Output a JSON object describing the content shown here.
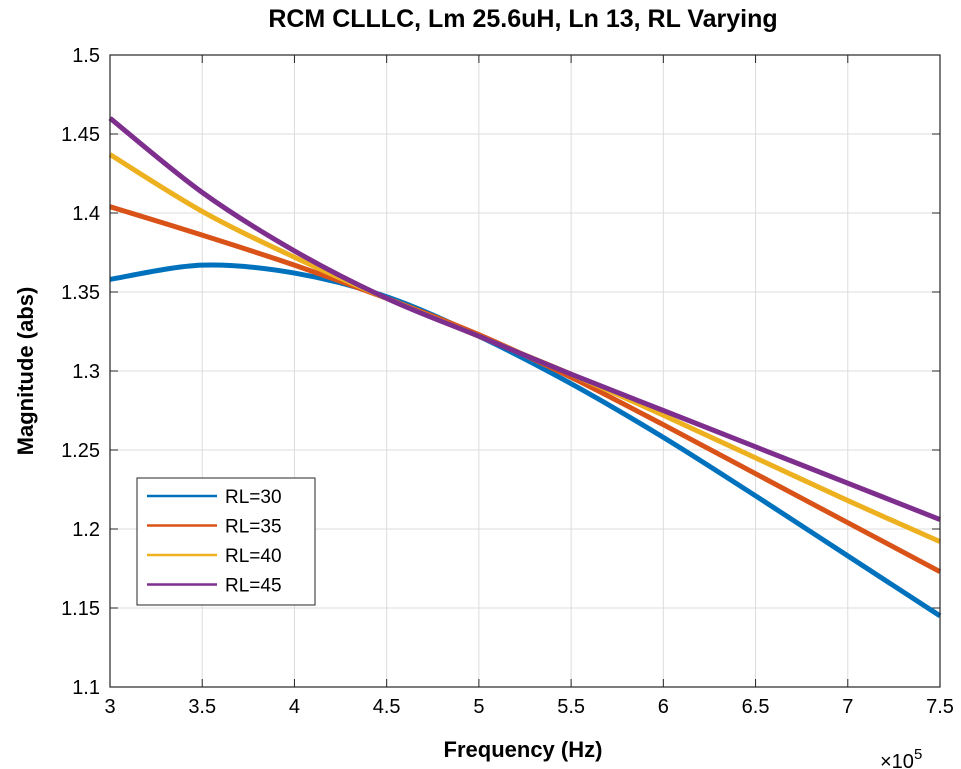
{
  "chart_data": {
    "type": "line",
    "title": "RCM CLLLC, Lm 25.6uH, Ln 13, RL Varying",
    "xlabel": "Frequency  (Hz)",
    "ylabel": "Magnitude (abs)",
    "x_exponent_label": "×10",
    "x_exponent_power": "5",
    "xlim": [
      300000,
      750000
    ],
    "ylim": [
      1.1,
      1.5
    ],
    "xticks": [
      300000,
      350000,
      400000,
      450000,
      500000,
      550000,
      600000,
      650000,
      700000,
      750000
    ],
    "xtick_labels": [
      "3",
      "3.5",
      "4",
      "4.5",
      "5",
      "5.5",
      "6",
      "6.5",
      "7",
      "7.5"
    ],
    "yticks": [
      1.1,
      1.15,
      1.2,
      1.25,
      1.3,
      1.35,
      1.4,
      1.45,
      1.5
    ],
    "ytick_labels": [
      "1.1",
      "1.15",
      "1.2",
      "1.25",
      "1.3",
      "1.35",
      "1.4",
      "1.45",
      "1.5"
    ],
    "grid": true,
    "legend_position": "bottom-left",
    "x": [
      300000,
      350000,
      400000,
      450000,
      500000,
      550000,
      600000,
      650000,
      700000,
      750000
    ],
    "series": [
      {
        "name": "RL=30",
        "color": "#0072BD",
        "values": [
          1.358,
          1.367,
          1.362,
          1.347,
          1.322,
          1.292,
          1.258,
          1.221,
          1.183,
          1.145
        ]
      },
      {
        "name": "RL=35",
        "color": "#D95319",
        "values": [
          1.404,
          1.386,
          1.367,
          1.346,
          1.323,
          1.296,
          1.266,
          1.235,
          1.204,
          1.173
        ]
      },
      {
        "name": "RL=40",
        "color": "#EDB120",
        "values": [
          1.437,
          1.401,
          1.372,
          1.346,
          1.322,
          1.298,
          1.272,
          1.245,
          1.218,
          1.192
        ]
      },
      {
        "name": "RL=45",
        "color": "#7E2F8E",
        "values": [
          1.46,
          1.413,
          1.376,
          1.346,
          1.322,
          1.298,
          1.275,
          1.252,
          1.229,
          1.206
        ]
      }
    ]
  }
}
